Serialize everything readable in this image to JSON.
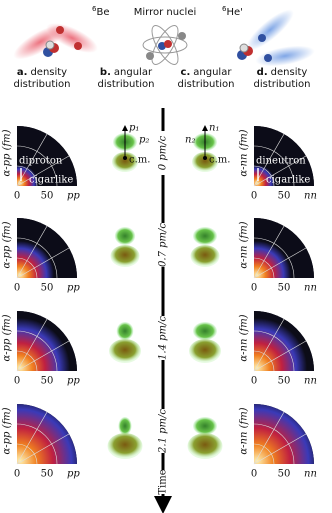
{
  "header": {
    "left": {
      "mass": "6",
      "symbol": "Be"
    },
    "middle": "Mirror nuclei",
    "right": {
      "mass": "6",
      "symbol": "He'"
    }
  },
  "columns": [
    {
      "letter": "a.",
      "lines": [
        "density",
        "distribution"
      ]
    },
    {
      "letter": "b.",
      "lines": [
        "angular",
        "distribution"
      ]
    },
    {
      "letter": "c.",
      "lines": [
        "angular",
        "distribution"
      ]
    },
    {
      "letter": "d.",
      "lines": [
        "density",
        "distribution"
      ]
    }
  ],
  "density_panels": {
    "left": {
      "y_label": "α-pp (fm)",
      "x_label": "pp",
      "ticks": [
        "0",
        "50"
      ],
      "annotations": [
        "diproton",
        "cigarlike"
      ]
    },
    "right": {
      "y_label": "α-nn (fm)",
      "x_label": "nn",
      "ticks": [
        "0",
        "50"
      ],
      "annotations": [
        "dineutron",
        "cigarlike"
      ]
    }
  },
  "angular_panels": {
    "left": {
      "top": "p₁",
      "side": "p₂",
      "center": "c.m."
    },
    "right": {
      "top": "n₁",
      "side": "n₂",
      "center": "c.m."
    }
  },
  "momenta": [
    "0 pm/c",
    "0.7 pm/c",
    "1.4 pm/c",
    "2.1 pm/c"
  ],
  "time_label": "Time"
}
